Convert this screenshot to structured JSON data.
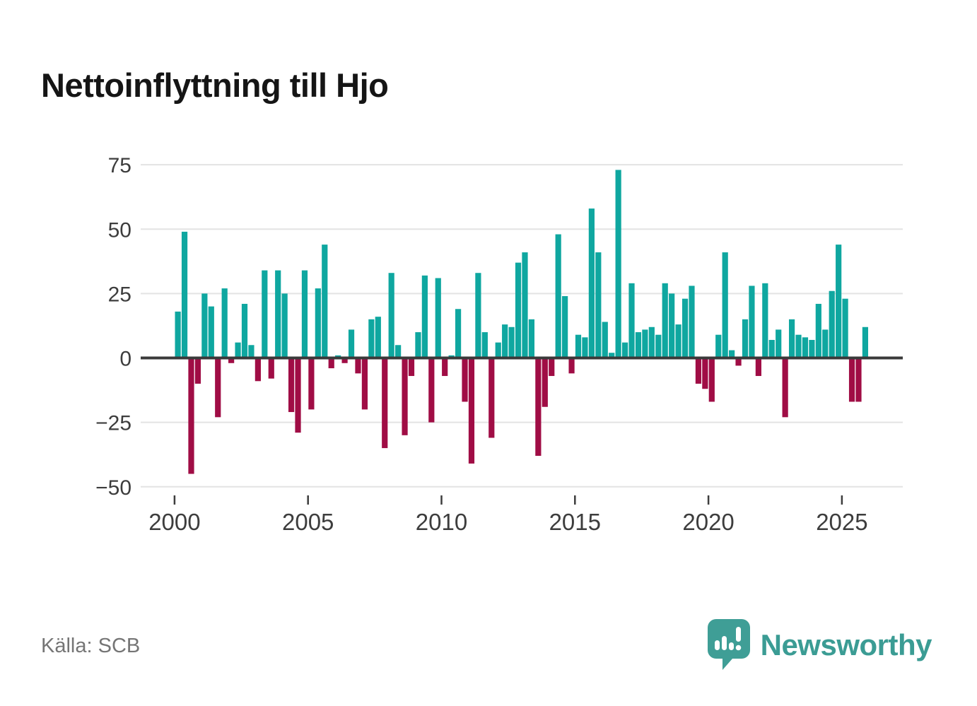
{
  "title": "Nettoinflyttning till Hjo",
  "source": "Källa: SCB",
  "logo": {
    "text": "Newsworthy"
  },
  "colors": {
    "positive_bar": "#0fa7a0",
    "negative_bar": "#a00d45",
    "grid_line": "#e3e3e3",
    "zero_line": "#3a3a3a",
    "axis_text": "#3d3d3d",
    "title_text": "#151515",
    "source_text": "#757575",
    "logo_teal": "#3f9e96"
  },
  "chart_data": {
    "type": "bar",
    "title": "Nettoinflyttning till Hjo",
    "xlabel": "",
    "ylabel": "",
    "x_unit": "quarter",
    "grid": true,
    "legend": false,
    "ylim": [
      -50,
      75
    ],
    "yticks": [
      75,
      50,
      25,
      0,
      -25,
      -50
    ],
    "xticks": [
      {
        "label": "2000",
        "index": 0
      },
      {
        "label": "2005",
        "index": 20
      },
      {
        "label": "2010",
        "index": 40
      },
      {
        "label": "2015",
        "index": 60
      },
      {
        "label": "2020",
        "index": 80
      },
      {
        "label": "2025",
        "index": 100
      }
    ],
    "values_by_year": [
      {
        "year": 2000,
        "quarters": [
          18,
          49,
          -45,
          -10
        ]
      },
      {
        "year": 2001,
        "quarters": [
          25,
          20,
          -23,
          27
        ]
      },
      {
        "year": 2002,
        "quarters": [
          -2,
          6,
          21,
          5
        ]
      },
      {
        "year": 2003,
        "quarters": [
          -9,
          34,
          -8,
          34
        ]
      },
      {
        "year": 2004,
        "quarters": [
          25,
          -21,
          -29,
          34
        ]
      },
      {
        "year": 2005,
        "quarters": [
          -20,
          27,
          44,
          -4
        ]
      },
      {
        "year": 2006,
        "quarters": [
          1,
          -2,
          11,
          -6
        ]
      },
      {
        "year": 2007,
        "quarters": [
          -20,
          15,
          16,
          -35
        ]
      },
      {
        "year": 2008,
        "quarters": [
          33,
          5,
          -30,
          -7
        ]
      },
      {
        "year": 2009,
        "quarters": [
          10,
          32,
          -25,
          31
        ]
      },
      {
        "year": 2010,
        "quarters": [
          -7,
          1,
          19,
          -17
        ]
      },
      {
        "year": 2011,
        "quarters": [
          -41,
          33,
          10,
          -31
        ]
      },
      {
        "year": 2012,
        "quarters": [
          6,
          13,
          12,
          37
        ]
      },
      {
        "year": 2013,
        "quarters": [
          41,
          15,
          -38,
          -19
        ]
      },
      {
        "year": 2014,
        "quarters": [
          -7,
          48,
          24,
          -6
        ]
      },
      {
        "year": 2015,
        "quarters": [
          9,
          8,
          58,
          41
        ]
      },
      {
        "year": 2016,
        "quarters": [
          14,
          2,
          73,
          6
        ]
      },
      {
        "year": 2017,
        "quarters": [
          29,
          10,
          11,
          12
        ]
      },
      {
        "year": 2018,
        "quarters": [
          9,
          29,
          25,
          13
        ]
      },
      {
        "year": 2019,
        "quarters": [
          23,
          28,
          -10,
          -12
        ]
      },
      {
        "year": 2020,
        "quarters": [
          -17,
          9,
          41,
          3
        ]
      },
      {
        "year": 2021,
        "quarters": [
          -3,
          15,
          28,
          -7
        ]
      },
      {
        "year": 2022,
        "quarters": [
          29,
          7,
          11,
          -23
        ]
      },
      {
        "year": 2023,
        "quarters": [
          15,
          9,
          8,
          7
        ]
      },
      {
        "year": 2024,
        "quarters": [
          21,
          11,
          26,
          44
        ]
      },
      {
        "year": 2025,
        "quarters": [
          23,
          -17,
          -17,
          12
        ]
      }
    ]
  }
}
